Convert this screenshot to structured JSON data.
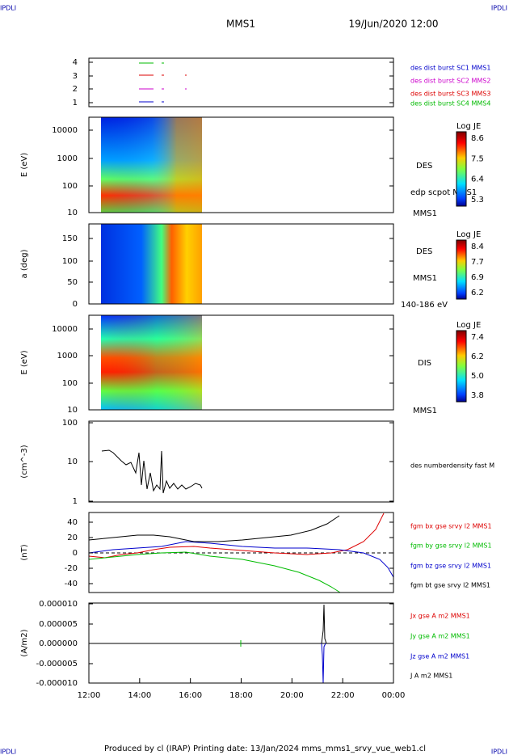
{
  "header": {
    "corner_left": "IPDLI",
    "corner_right": "IPDLI",
    "title": "MMS1",
    "datetime": "19/Jun/2020 12:00"
  },
  "panels": [
    {
      "yticks": [
        "4",
        "3",
        "2",
        "1"
      ],
      "labels": [
        {
          "text": "des dist burst SC1 MMS1",
          "color": "#0000cc"
        },
        {
          "text": "des dist burst SC2 MMS2",
          "color": "#cc00cc"
        },
        {
          "text": "des dist burst SC3 MMS3",
          "color": "#dd0000"
        },
        {
          "text": "des dist burst SC4 MMS4",
          "color": "#00bb00"
        }
      ]
    },
    {
      "ylabel": "E (eV)",
      "yticks": [
        "10000",
        "1000",
        "100",
        "10"
      ],
      "colorbar": {
        "title": "Log JE",
        "ticks": [
          "8.6",
          "7.5",
          "6.4",
          "5.3"
        ]
      },
      "labels": [
        {
          "text": "DES",
          "color": "#000000"
        },
        {
          "text": "edp scpot MMS1",
          "color": "#000000"
        },
        {
          "text": "MMS1",
          "color": "#000000"
        }
      ]
    },
    {
      "ylabel": "a (deg)",
      "yticks": [
        "150",
        "100",
        "50",
        "0"
      ],
      "colorbar": {
        "title": "Log JE",
        "ticks": [
          "8.4",
          "7.7",
          "6.9",
          "6.2"
        ]
      },
      "labels": [
        {
          "text": "DES",
          "color": "#000000"
        },
        {
          "text": "MMS1",
          "color": "#000000"
        },
        {
          "text": "140-186 eV",
          "color": "#000000"
        }
      ]
    },
    {
      "ylabel": "E (eV)",
      "yticks": [
        "10000",
        "1000",
        "100",
        "10"
      ],
      "colorbar": {
        "title": "Log JE",
        "ticks": [
          "7.4",
          "6.2",
          "5.0",
          "3.8"
        ]
      },
      "labels": [
        {
          "text": "DIS",
          "color": "#000000"
        },
        {
          "text": "MMS1",
          "color": "#000000"
        }
      ]
    },
    {
      "ylabel": "(cm^-3)",
      "yticks": [
        "100",
        "10",
        "1"
      ],
      "labels": [
        {
          "text": "des numberdensity fast M",
          "color": "#000000"
        }
      ]
    },
    {
      "ylabel": "(nT)",
      "yticks": [
        "40",
        "20",
        "0",
        "-20",
        "-40"
      ],
      "labels": [
        {
          "text": "fgm bx gse srvy l2 MMS1",
          "color": "#dd0000"
        },
        {
          "text": "fgm by gse srvy l2 MMS1",
          "color": "#00bb00"
        },
        {
          "text": "fgm bz gse srvy l2 MMS1",
          "color": "#0000cc"
        },
        {
          "text": "fgm bt gse srvy l2 MMS1",
          "color": "#000000"
        }
      ]
    },
    {
      "ylabel": "(A/m2)",
      "yticks": [
        "0.000010",
        "0.000005",
        "0.000000",
        "-0.000005",
        "-0.000010"
      ],
      "labels": [
        {
          "text": "Jx gse A m2 MMS1",
          "color": "#dd0000"
        },
        {
          "text": "Jy gse A m2 MMS1",
          "color": "#00bb00"
        },
        {
          "text": "Jz gse A m2 MMS1",
          "color": "#0000cc"
        },
        {
          "text": "J A m2 MMS1",
          "color": "#000000"
        }
      ]
    }
  ],
  "xticks": [
    "12:00",
    "14:00",
    "16:00",
    "18:00",
    "20:00",
    "22:00",
    "00:00"
  ],
  "footer": "Produced by cl (IRAP)   Printing date: 13/Jan/2024   mms_mms1_srvy_vue_web1.cl"
}
